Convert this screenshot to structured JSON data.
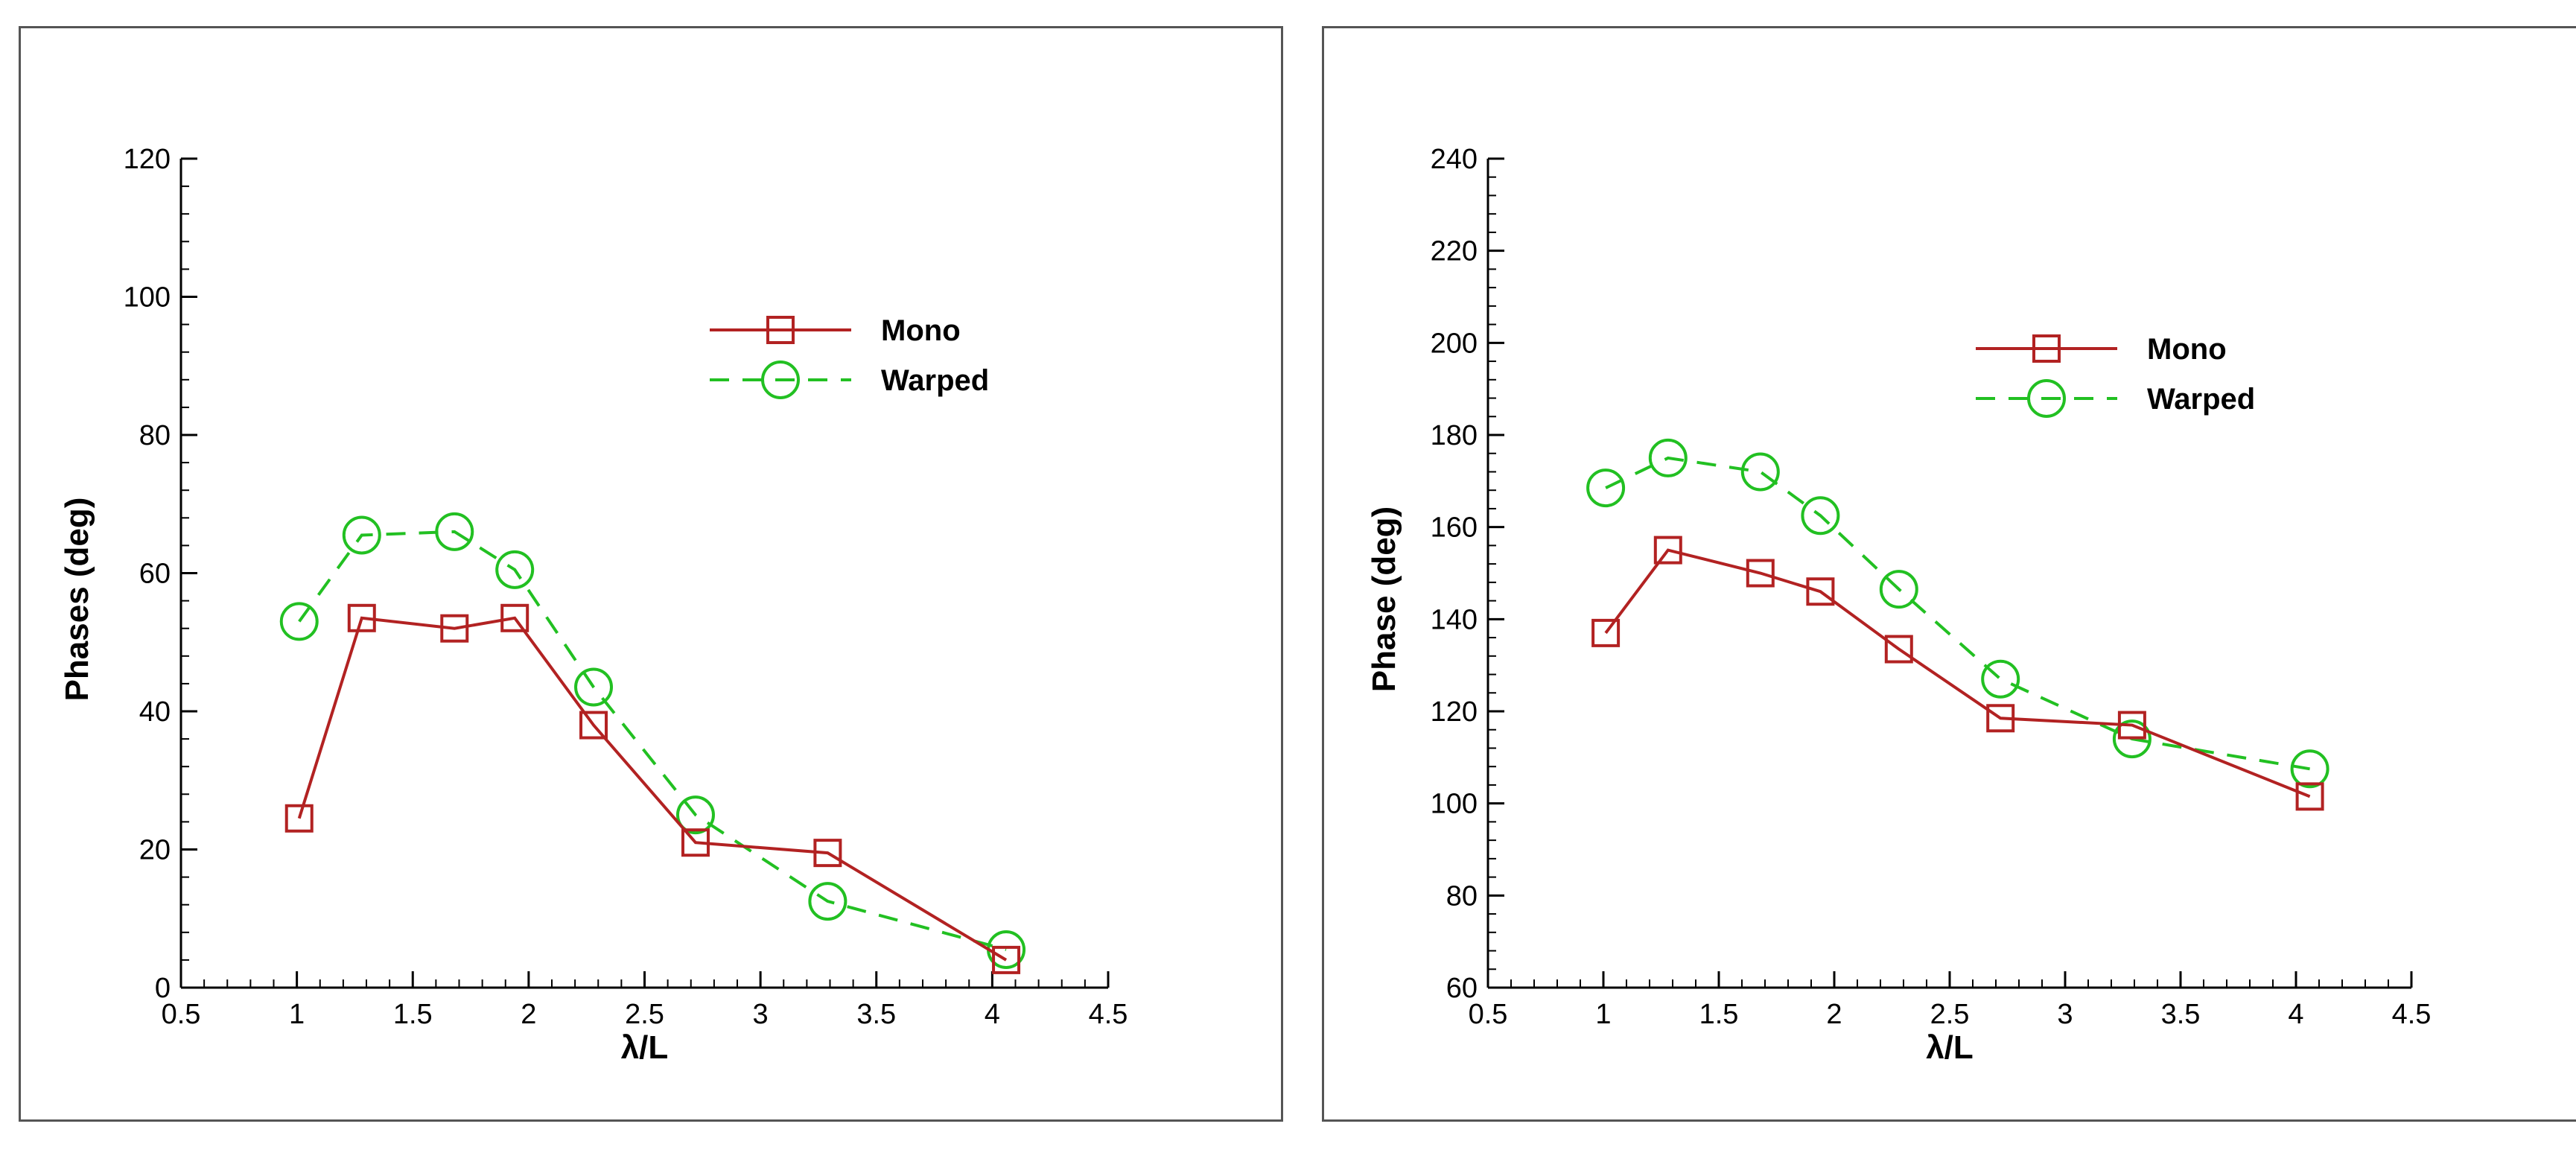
{
  "chart_data": [
    {
      "type": "line",
      "xlabel": "λ/L",
      "ylabel": "Phases (deg)",
      "xlim": [
        0.5,
        4.5
      ],
      "ylim": [
        0,
        120
      ],
      "xticks": [
        0.5,
        1,
        1.5,
        2,
        2.5,
        3,
        3.5,
        4,
        4.5
      ],
      "yticks": [
        0,
        20,
        40,
        60,
        80,
        100,
        120
      ],
      "grid": false,
      "legend_position": "upper-right",
      "x": [
        1.01,
        1.28,
        1.68,
        1.94,
        2.28,
        2.72,
        3.29,
        4.06
      ],
      "series": [
        {
          "name": "Mono",
          "marker": "square",
          "line": "solid",
          "color": "#b22222",
          "values": [
            24.5,
            53.5,
            52.0,
            53.5,
            38.0,
            21.0,
            19.5,
            4.0
          ]
        },
        {
          "name": "Warped",
          "marker": "circle",
          "line": "dashed",
          "color": "#22c022",
          "values": [
            53.0,
            65.5,
            66.0,
            60.5,
            43.5,
            25.0,
            12.5,
            5.5
          ]
        }
      ]
    },
    {
      "type": "line",
      "xlabel": "λ/L",
      "ylabel": "Phase (deg)",
      "xlim": [
        0.5,
        4.5
      ],
      "ylim": [
        60,
        240
      ],
      "xticks": [
        0.5,
        1,
        1.5,
        2,
        2.5,
        3,
        3.5,
        4,
        4.5
      ],
      "yticks": [
        60,
        80,
        100,
        120,
        140,
        160,
        180,
        200,
        220,
        240
      ],
      "grid": false,
      "legend_position": "upper-right",
      "x": [
        1.01,
        1.28,
        1.68,
        1.94,
        2.28,
        2.72,
        3.29,
        4.06
      ],
      "series": [
        {
          "name": "Mono",
          "marker": "square",
          "line": "solid",
          "color": "#b22222",
          "values": [
            137,
            155,
            150,
            146,
            133.5,
            118.5,
            117,
            101.5
          ]
        },
        {
          "name": "Warped",
          "marker": "circle",
          "line": "dashed",
          "color": "#22c022",
          "values": [
            168.5,
            175,
            172,
            162.5,
            146.5,
            127,
            114,
            107.5
          ]
        }
      ]
    }
  ]
}
